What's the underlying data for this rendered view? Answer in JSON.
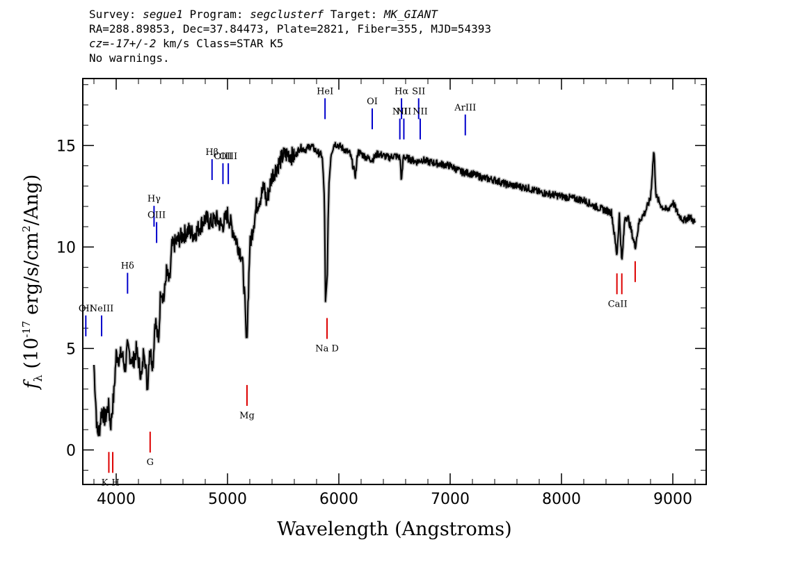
{
  "header": {
    "survey_label": "Survey: ",
    "survey": "segue1",
    "program_label": " Program: ",
    "program": "segclusterf",
    "target_label": " Target: ",
    "target": "MK_GIANT",
    "line2": "RA=288.89853, Dec=37.84473, Plate=2821, Fiber=355, MJD=54393",
    "cz_label": "cz=",
    "cz": "-17+/-2",
    "cz_rest": " km/s Class=STAR K5",
    "warnings": "No warnings."
  },
  "chart_data": {
    "type": "line",
    "xlabel": "Wavelength (Angstroms)",
    "ylabel": "f_λ (10^-17 erg/s/cm^2/Ang)",
    "xlim": [
      3700,
      9300
    ],
    "ylim": [
      -1.7,
      18.3
    ],
    "xticks": [
      "4000",
      "5000",
      "6000",
      "7000",
      "8000",
      "9000"
    ],
    "yticks": [
      "0",
      "5",
      "10",
      "15"
    ],
    "colors": {
      "spectrum": "#000000",
      "error": "#bbbbbb",
      "emission": "#0000cc",
      "absorption": "#dd0000"
    },
    "spectrum": {
      "x": [
        3800,
        3830,
        3850,
        3870,
        3900,
        3930,
        3950,
        3980,
        4000,
        4030,
        4050,
        4080,
        4100,
        4130,
        4150,
        4180,
        4200,
        4230,
        4250,
        4280,
        4300,
        4330,
        4350,
        4380,
        4400,
        4430,
        4450,
        4480,
        4500,
        4550,
        4600,
        4650,
        4700,
        4750,
        4800,
        4850,
        4900,
        4950,
        5000,
        5050,
        5100,
        5130,
        5150,
        5170,
        5180,
        5200,
        5230,
        5260,
        5300,
        5330,
        5350,
        5400,
        5450,
        5500,
        5550,
        5600,
        5650,
        5700,
        5750,
        5800,
        5850,
        5870,
        5880,
        5895,
        5910,
        5930,
        5960,
        6000,
        6050,
        6100,
        6150,
        6170,
        6200,
        6250,
        6300,
        6350,
        6400,
        6450,
        6500,
        6550,
        6563,
        6580,
        6600,
        6650,
        6700,
        6750,
        6800,
        6900,
        7000,
        7100,
        7200,
        7300,
        7400,
        7500,
        7600,
        7700,
        7800,
        7900,
        8000,
        8100,
        8200,
        8300,
        8400,
        8450,
        8498,
        8520,
        8542,
        8570,
        8600,
        8662,
        8700,
        8750,
        8800,
        8830,
        8850,
        8900,
        8950,
        9000,
        9050,
        9100,
        9150,
        9200
      ],
      "y": [
        4.2,
        0.8,
        1.0,
        2.0,
        1.5,
        2.2,
        1.2,
        2.8,
        4.7,
        4.5,
        4.8,
        4.0,
        5.0,
        4.6,
        4.3,
        4.9,
        4.4,
        3.5,
        5.2,
        3.0,
        5.0,
        4.2,
        6.5,
        5.2,
        8.0,
        7.4,
        8.8,
        8.2,
        10.0,
        10.3,
        10.6,
        10.8,
        10.6,
        11.0,
        11.4,
        11.2,
        11.4,
        11.0,
        11.6,
        10.8,
        10.0,
        9.5,
        8.0,
        5.2,
        6.5,
        10.0,
        11.0,
        12.0,
        12.5,
        13.0,
        12.2,
        13.5,
        14.0,
        14.5,
        14.6,
        14.4,
        14.9,
        14.8,
        15.0,
        14.7,
        14.5,
        12.5,
        7.2,
        8.5,
        13.0,
        14.6,
        15.1,
        15.0,
        14.8,
        14.6,
        13.5,
        14.7,
        14.6,
        14.4,
        14.3,
        14.6,
        14.5,
        14.4,
        14.5,
        14.4,
        13.2,
        14.5,
        14.4,
        14.3,
        14.2,
        14.3,
        14.2,
        14.1,
        14.0,
        13.7,
        13.6,
        13.4,
        13.3,
        13.1,
        13.0,
        12.9,
        12.7,
        12.6,
        12.5,
        12.4,
        12.3,
        12.0,
        11.8,
        11.7,
        9.6,
        11.6,
        9.2,
        11.5,
        11.4,
        10.0,
        11.3,
        11.7,
        12.4,
        14.8,
        12.5,
        12.0,
        11.8,
        12.2,
        11.6,
        11.3,
        11.5,
        11.2
      ]
    },
    "emission_lines": [
      {
        "label": "OII",
        "x": 3727,
        "y": 5.6
      },
      {
        "label": "NeIII",
        "x": 3869,
        "y": 5.6
      },
      {
        "label": "Hδ",
        "x": 4102,
        "y": 7.7
      },
      {
        "label": "Hγ",
        "x": 4340,
        "y": 11.0
      },
      {
        "label": "OIII",
        "x": 4363,
        "y": 10.2
      },
      {
        "label": "Hβ",
        "x": 4861,
        "y": 13.3
      },
      {
        "label": "OIII",
        "x": 4959,
        "y": 13.1
      },
      {
        "label": "OIII",
        "x": 5007,
        "y": 13.1
      },
      {
        "label": "HeI",
        "x": 5876,
        "y": 16.3
      },
      {
        "label": "OI",
        "x": 6300,
        "y": 15.8
      },
      {
        "label": "NII",
        "x": 6548,
        "y": 15.3
      },
      {
        "label": "Hα",
        "x": 6563,
        "y": 16.3
      },
      {
        "label": "NII",
        "x": 6584,
        "y": 15.3
      },
      {
        "label": "SII",
        "x": 6717,
        "y": 16.3
      },
      {
        "label": "NII",
        "x": 6731,
        "y": 15.3
      },
      {
        "label": "ArIII",
        "x": 7136,
        "y": 15.5
      }
    ],
    "absorption_lines": [
      {
        "label": "K",
        "x": 3934,
        "y": -0.1,
        "label_dx": -6
      },
      {
        "label": "H",
        "x": 3969,
        "y": -0.1,
        "label_dx": 4
      },
      {
        "label": "G",
        "x": 4305,
        "y": 0.9
      },
      {
        "label": "Mg",
        "x": 5175,
        "y": 3.2
      },
      {
        "label": "Na D",
        "x": 5894,
        "y": 6.5
      },
      {
        "label": "CaII",
        "x": 8498,
        "y": 8.7,
        "show_label": false
      },
      {
        "label": "CaII",
        "x": 8542,
        "y": 8.7,
        "label_dx": -6
      },
      {
        "label": "CaII",
        "x": 8662,
        "y": 9.3,
        "show_label": false
      }
    ]
  }
}
